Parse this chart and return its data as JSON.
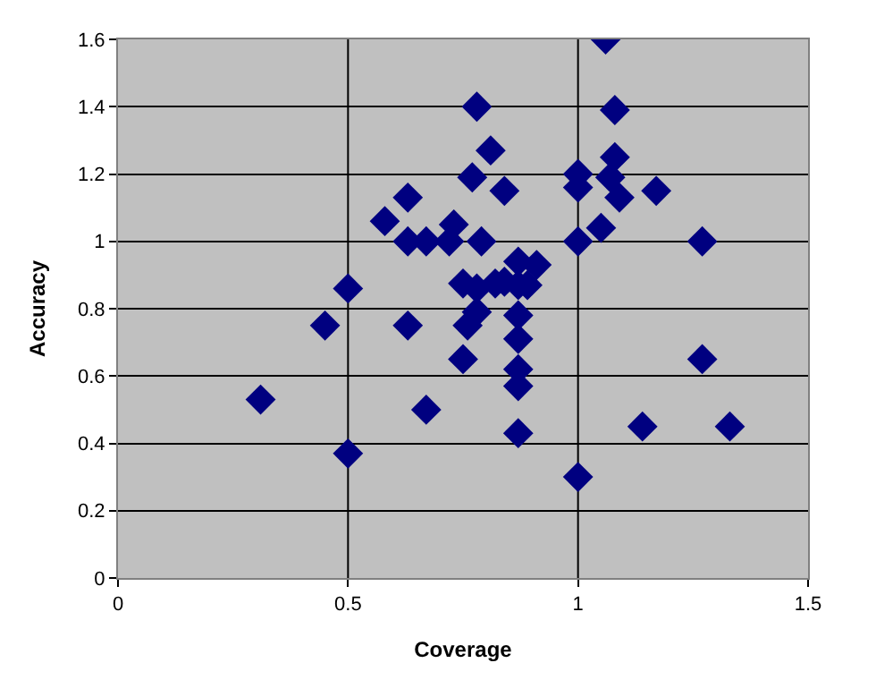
{
  "chart_data": {
    "type": "scatter",
    "xlabel": "Coverage",
    "ylabel": "Accuracy",
    "marker": "diamond",
    "grid": "y",
    "legend": false,
    "xlim": [
      0,
      1.5
    ],
    "xticks": [
      0,
      0.5,
      1,
      1.5
    ],
    "ylim": [
      0,
      1.6
    ],
    "yticks": [
      0,
      {
        "value": 0.2,
        "label": "0.2"
      },
      {
        "value": 0.4,
        "label": "0.4"
      },
      {
        "value": 0.6,
        "label": "0.6"
      },
      {
        "value": 0.8,
        "label": "0.8"
      },
      1,
      {
        "value": 1.2,
        "label": "1.2"
      },
      {
        "value": 1.4,
        "label": "1.4"
      },
      {
        "value": 1.6,
        "label": "1.6"
      }
    ],
    "ref_lines": [
      {
        "axis": "x",
        "value": 0.5,
        "color": "#000000"
      },
      {
        "axis": "x",
        "value": 1,
        "color": "#000000"
      }
    ],
    "series": [
      {
        "color": "#000080",
        "x": [
          0.31,
          0.45,
          0.5,
          0.5,
          0.58,
          0.63,
          0.63,
          0.63,
          0.67,
          0.67,
          0.72,
          0.73,
          0.75,
          0.76,
          0.75,
          0.77,
          0.78,
          0.78,
          0.78,
          0.79,
          0.81,
          0.82,
          0.84,
          0.84,
          0.87,
          0.87,
          0.87,
          0.87,
          0.87,
          0.87,
          0.87,
          0.89,
          0.91,
          1.0,
          1.0,
          1.0,
          1.0,
          1.05,
          1.06,
          1.07,
          1.08,
          1.08,
          1.09,
          1.17,
          1.14,
          1.27,
          1.27,
          1.33
        ],
        "values": [
          0.53,
          0.75,
          0.86,
          0.37,
          1.06,
          1.13,
          1.0,
          0.75,
          1.0,
          0.5,
          1.0,
          1.05,
          0.875,
          0.75,
          0.65,
          1.19,
          1.4,
          0.86,
          0.79,
          1.0,
          1.27,
          0.875,
          1.15,
          0.88,
          0.94,
          0.87,
          0.78,
          0.71,
          0.62,
          0.57,
          0.43,
          0.87,
          0.93,
          1.2,
          1.16,
          1.0,
          0.3,
          1.04,
          1.6,
          1.19,
          1.39,
          1.25,
          1.13,
          1.15,
          0.45,
          1.0,
          0.65,
          0.45
        ]
      }
    ]
  }
}
